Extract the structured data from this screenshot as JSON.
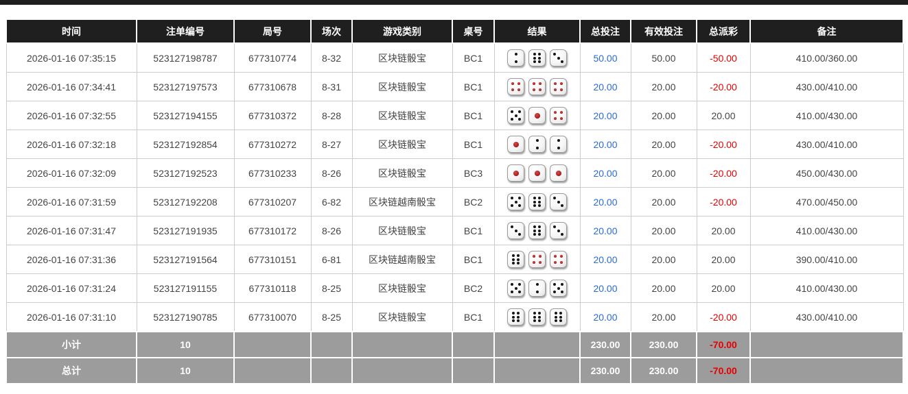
{
  "colors": {
    "header_bg": "#1f1f1f",
    "header_text": "#ffffff",
    "bet_amount_blue": "#2a6bd4",
    "negative_red": "#e60000",
    "footer_bg": "#9c9c9c",
    "row_border": "#cbcbcb",
    "top_bar": "#1f1f1f"
  },
  "dice": {
    "red_values": [
      1,
      4
    ]
  },
  "table": {
    "columns": [
      {
        "key": "time",
        "label": "时间"
      },
      {
        "key": "bet_id",
        "label": "注单编号"
      },
      {
        "key": "round_id",
        "label": "局号"
      },
      {
        "key": "session",
        "label": "场次"
      },
      {
        "key": "game_type",
        "label": "游戏类别"
      },
      {
        "key": "table_no",
        "label": "桌号"
      },
      {
        "key": "result",
        "label": "结果"
      },
      {
        "key": "total_bet",
        "label": "总投注"
      },
      {
        "key": "valid_bet",
        "label": "有效投注"
      },
      {
        "key": "payout",
        "label": "总派彩"
      },
      {
        "key": "remark",
        "label": "备注"
      }
    ],
    "rows": [
      {
        "time": "2026-01-16 07:35:15",
        "bet_id": "523127198787",
        "round_id": "677310774",
        "session": "8-32",
        "game_type": "区块链骰宝",
        "table_no": "BC1",
        "dice": [
          2,
          6,
          3
        ],
        "total_bet": "50.00",
        "valid_bet": "50.00",
        "payout": "-50.00",
        "remark": "410.00/360.00"
      },
      {
        "time": "2026-01-16 07:34:41",
        "bet_id": "523127197573",
        "round_id": "677310678",
        "session": "8-31",
        "game_type": "区块链骰宝",
        "table_no": "BC1",
        "dice": [
          4,
          4,
          4
        ],
        "total_bet": "20.00",
        "valid_bet": "20.00",
        "payout": "-20.00",
        "remark": "430.00/410.00"
      },
      {
        "time": "2026-01-16 07:32:55",
        "bet_id": "523127194155",
        "round_id": "677310372",
        "session": "8-28",
        "game_type": "区块链骰宝",
        "table_no": "BC1",
        "dice": [
          5,
          1,
          4
        ],
        "total_bet": "20.00",
        "valid_bet": "20.00",
        "payout": "20.00",
        "remark": "410.00/430.00"
      },
      {
        "time": "2026-01-16 07:32:18",
        "bet_id": "523127192854",
        "round_id": "677310272",
        "session": "8-27",
        "game_type": "区块链骰宝",
        "table_no": "BC1",
        "dice": [
          1,
          2,
          2
        ],
        "total_bet": "20.00",
        "valid_bet": "20.00",
        "payout": "-20.00",
        "remark": "430.00/410.00"
      },
      {
        "time": "2026-01-16 07:32:09",
        "bet_id": "523127192523",
        "round_id": "677310233",
        "session": "8-26",
        "game_type": "区块链骰宝",
        "table_no": "BC3",
        "dice": [
          1,
          1,
          1
        ],
        "total_bet": "20.00",
        "valid_bet": "20.00",
        "payout": "-20.00",
        "remark": "450.00/430.00"
      },
      {
        "time": "2026-01-16 07:31:59",
        "bet_id": "523127192208",
        "round_id": "677310207",
        "session": "6-82",
        "game_type": "区块链越南骰宝",
        "table_no": "BC2",
        "dice": [
          5,
          6,
          3
        ],
        "total_bet": "20.00",
        "valid_bet": "20.00",
        "payout": "-20.00",
        "remark": "470.00/450.00"
      },
      {
        "time": "2026-01-16 07:31:47",
        "bet_id": "523127191935",
        "round_id": "677310172",
        "session": "8-26",
        "game_type": "区块链骰宝",
        "table_no": "BC1",
        "dice": [
          3,
          6,
          3
        ],
        "total_bet": "20.00",
        "valid_bet": "20.00",
        "payout": "20.00",
        "remark": "410.00/430.00"
      },
      {
        "time": "2026-01-16 07:31:36",
        "bet_id": "523127191564",
        "round_id": "677310151",
        "session": "6-81",
        "game_type": "区块链越南骰宝",
        "table_no": "BC1",
        "dice": [
          6,
          4,
          4
        ],
        "total_bet": "20.00",
        "valid_bet": "20.00",
        "payout": "20.00",
        "remark": "390.00/410.00"
      },
      {
        "time": "2026-01-16 07:31:24",
        "bet_id": "523127191155",
        "round_id": "677310118",
        "session": "8-25",
        "game_type": "区块链骰宝",
        "table_no": "BC2",
        "dice": [
          5,
          2,
          5
        ],
        "total_bet": "20.00",
        "valid_bet": "20.00",
        "payout": "20.00",
        "remark": "410.00/430.00"
      },
      {
        "time": "2026-01-16 07:31:10",
        "bet_id": "523127190785",
        "round_id": "677310070",
        "session": "8-25",
        "game_type": "区块链骰宝",
        "table_no": "BC1",
        "dice": [
          6,
          6,
          6
        ],
        "total_bet": "20.00",
        "valid_bet": "20.00",
        "payout": "-20.00",
        "remark": "430.00/410.00"
      }
    ],
    "footer_rows": [
      {
        "label": "小计",
        "count": "10",
        "total_bet": "230.00",
        "valid_bet": "230.00",
        "payout": "-70.00",
        "remark": ""
      },
      {
        "label": "总计",
        "count": "10",
        "total_bet": "230.00",
        "valid_bet": "230.00",
        "payout": "-70.00",
        "remark": ""
      }
    ]
  }
}
